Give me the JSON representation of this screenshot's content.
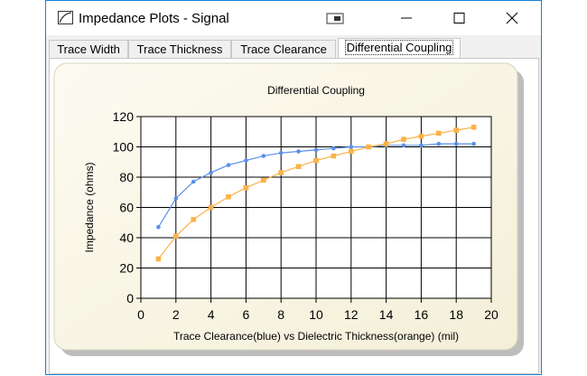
{
  "window": {
    "title": "Impedance Plots - Signal",
    "border_color": "#1883d7"
  },
  "tabs": [
    {
      "label": "Trace Width",
      "active": false
    },
    {
      "label": "Trace Thickness",
      "active": false
    },
    {
      "label": "Trace Clearance",
      "active": false
    },
    {
      "label": "Differential Coupling",
      "active": true
    }
  ],
  "chart_data": {
    "type": "line",
    "title": "Differential Coupling",
    "xlabel": "Trace Clearance(blue) vs Dielectric Thickness(orange)  (mil)",
    "ylabel": "Impedance (ohms)",
    "xlim": [
      0,
      20
    ],
    "ylim": [
      0,
      120
    ],
    "x_ticks": [
      0,
      2,
      4,
      6,
      8,
      10,
      12,
      14,
      16,
      18,
      20
    ],
    "y_ticks": [
      0,
      20,
      40,
      60,
      80,
      100,
      120
    ],
    "grid": true,
    "x": [
      1,
      2,
      3,
      4,
      5,
      6,
      7,
      8,
      9,
      10,
      11,
      12,
      13,
      14,
      15,
      16,
      17,
      18,
      19
    ],
    "series": [
      {
        "color": "#5b8fe8",
        "values": [
          47,
          66,
          77,
          83,
          88,
          91,
          94,
          96,
          97,
          98,
          99,
          100,
          100,
          101,
          101,
          101,
          102,
          102,
          102
        ]
      },
      {
        "color": "#fbb248",
        "values": [
          26,
          41,
          52,
          60,
          67,
          73,
          78,
          83,
          87,
          91,
          94,
          97,
          100,
          102,
          105,
          107,
          109,
          111,
          113
        ]
      }
    ],
    "plot_background": "#ffffff",
    "panel_background": "#f9f6e8"
  }
}
